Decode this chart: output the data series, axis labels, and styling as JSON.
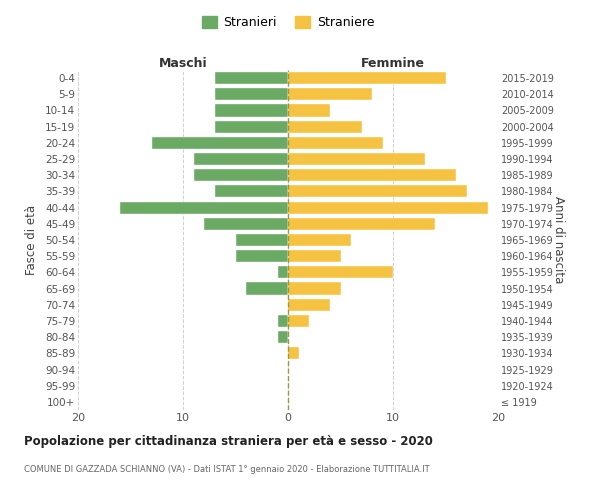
{
  "age_groups": [
    "100+",
    "95-99",
    "90-94",
    "85-89",
    "80-84",
    "75-79",
    "70-74",
    "65-69",
    "60-64",
    "55-59",
    "50-54",
    "45-49",
    "40-44",
    "35-39",
    "30-34",
    "25-29",
    "20-24",
    "15-19",
    "10-14",
    "5-9",
    "0-4"
  ],
  "birth_years": [
    "≤ 1919",
    "1920-1924",
    "1925-1929",
    "1930-1934",
    "1935-1939",
    "1940-1944",
    "1945-1949",
    "1950-1954",
    "1955-1959",
    "1960-1964",
    "1965-1969",
    "1970-1974",
    "1975-1979",
    "1980-1984",
    "1985-1989",
    "1990-1994",
    "1995-1999",
    "2000-2004",
    "2005-2009",
    "2010-2014",
    "2015-2019"
  ],
  "maschi": [
    0,
    0,
    0,
    0,
    1,
    1,
    0,
    4,
    1,
    5,
    5,
    8,
    16,
    7,
    9,
    9,
    13,
    7,
    7,
    7,
    7
  ],
  "femmine": [
    0,
    0,
    0,
    1,
    0,
    2,
    4,
    5,
    10,
    5,
    6,
    14,
    19,
    17,
    16,
    13,
    9,
    7,
    4,
    8,
    15
  ],
  "color_maschi": "#6aaa64",
  "color_femmine": "#f5c242",
  "title": "Popolazione per cittadinanza straniera per età e sesso - 2020",
  "subtitle": "COMUNE DI GAZZADA SCHIANNO (VA) - Dati ISTAT 1° gennaio 2020 - Elaborazione TUTTITALIA.IT",
  "xlabel_left": "Maschi",
  "xlabel_right": "Femmine",
  "ylabel_left": "Fasce di età",
  "ylabel_right": "Anni di nascita",
  "legend_maschi": "Stranieri",
  "legend_femmine": "Straniere",
  "xlim": 20,
  "background_color": "#ffffff",
  "grid_color": "#d0d0d0"
}
